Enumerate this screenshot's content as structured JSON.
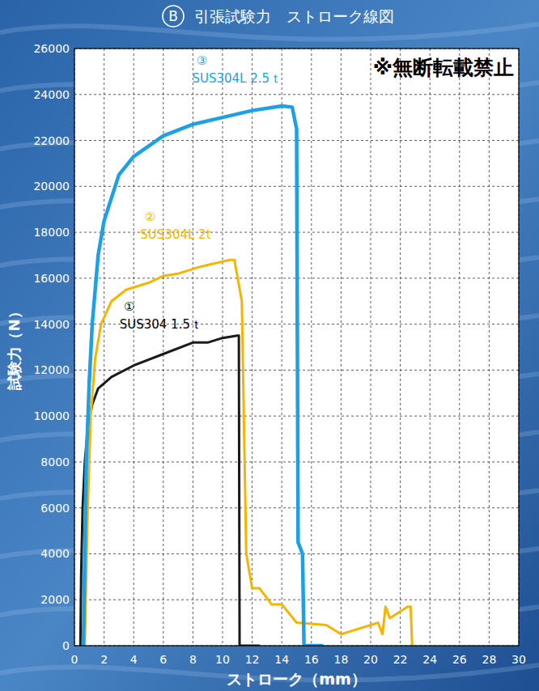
{
  "chart_data": {
    "type": "line",
    "title_mark": "B",
    "title": "引張試験力　ストローク線図",
    "x_label": "ストローク（mm）",
    "y_label": "試験力（N）",
    "annotations": [
      "※無断転載禁止"
    ],
    "xlim": [
      0,
      30
    ],
    "ylim": [
      0,
      26000
    ],
    "xticks": [
      0,
      2,
      4,
      6,
      8,
      10,
      12,
      14,
      16,
      18,
      20,
      22,
      24,
      26,
      28,
      30
    ],
    "yticks": [
      0,
      2000,
      4000,
      6000,
      8000,
      10000,
      12000,
      14000,
      16000,
      18000,
      20000,
      22000,
      24000,
      26000
    ],
    "grid": true,
    "series": [
      {
        "name": "SUS304 1.5ｔ",
        "label": "①",
        "color": "#1a1a1a",
        "x": [
          0.4,
          0.45,
          0.55,
          0.7,
          0.9,
          1.2,
          1.6,
          2.5,
          4,
          6,
          8,
          9,
          10,
          11,
          11.1,
          11.15,
          12.5
        ],
        "values": [
          0,
          3000,
          6000,
          8000,
          9500,
          10500,
          11200,
          11700,
          12200,
          12700,
          13200,
          13200,
          13400,
          13500,
          13500,
          0,
          0
        ]
      },
      {
        "name": "SUS304L 2t",
        "label": "②",
        "color": "#f5b400",
        "x": [
          0.7,
          0.9,
          1.1,
          1.4,
          1.8,
          2.5,
          3.5,
          5,
          6,
          7,
          8.5,
          10.5,
          10.8,
          11.3,
          11.6,
          12,
          12.5,
          13.3,
          14,
          15,
          17,
          18,
          19,
          20,
          20.5,
          20.8,
          21,
          21.3,
          22.5,
          22.7,
          22.8
        ],
        "values": [
          0,
          6000,
          10000,
          12500,
          14000,
          15000,
          15500,
          15800,
          16100,
          16200,
          16500,
          16800,
          16800,
          15000,
          4000,
          2500,
          2500,
          1800,
          1800,
          1000,
          900,
          500,
          700,
          900,
          1000,
          500,
          1700,
          1200,
          1700,
          1700,
          0
        ]
      },
      {
        "name": "SUS304L 2.5ｔ",
        "label": "③",
        "color": "#1ea0e6",
        "x": [
          0.6,
          0.8,
          1.0,
          1.2,
          1.6,
          2,
          3,
          4,
          6,
          8,
          10,
          12,
          14,
          14.7,
          15.0,
          15.1,
          15.4,
          15.5,
          16.8
        ],
        "values": [
          0,
          8000,
          11500,
          14000,
          17000,
          18500,
          20500,
          21300,
          22200,
          22700,
          23000,
          23300,
          23500,
          23450,
          22500,
          4500,
          4000,
          0,
          0
        ]
      }
    ]
  }
}
